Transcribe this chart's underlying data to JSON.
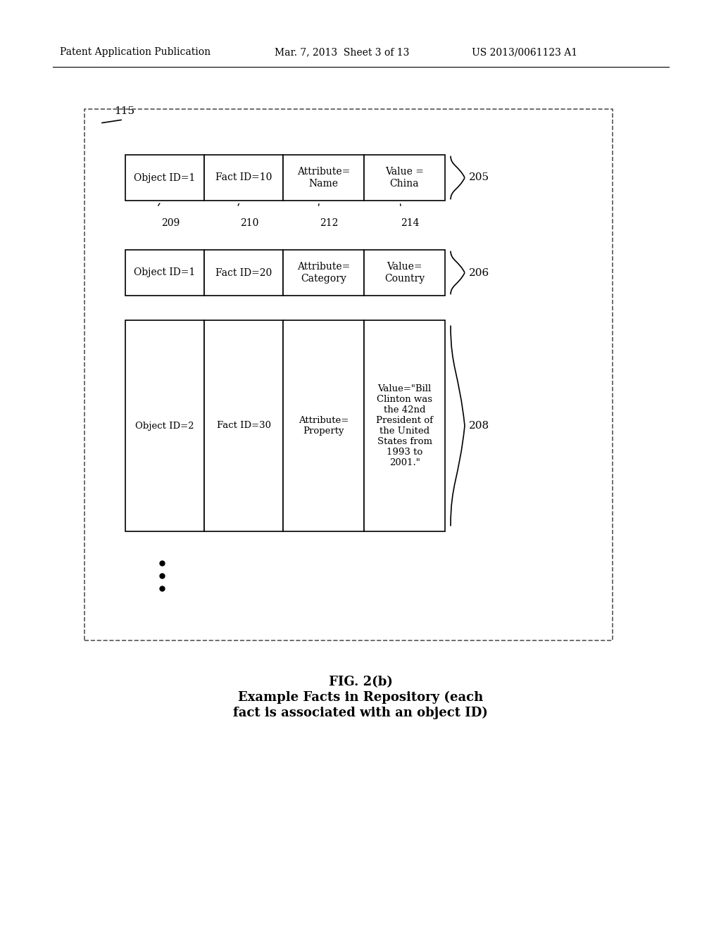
{
  "bg_color": "#ffffff",
  "header_left": "Patent Application Publication",
  "header_mid": "Mar. 7, 2013  Sheet 3 of 13",
  "header_right": "US 2013/0061123 A1",
  "caption_line1": "FIG. 2(b)",
  "caption_line2": "Example Facts in Repository (each",
  "caption_line3": "fact is associated with an object ID)",
  "outer_box_label": "115",
  "row1_cells": [
    "Object ID=1",
    "Fact ID=10",
    "Attribute=\nName",
    "Value =\nChina"
  ],
  "row1_label": "205",
  "row2_cells": [
    "Object ID=1",
    "Fact ID=20",
    "Attribute=\nCategory",
    "Value=\nCountry"
  ],
  "row2_label": "206",
  "row3_cells": [
    "Object ID=2",
    "Fact ID=30",
    "Attribute=\nProperty",
    "Value=\"Bill\nClinton was\nthe 42nd\nPresident of\nthe United\nStates from\n1993 to\n2001.\""
  ],
  "row3_label": "208",
  "col_labels": [
    "209",
    "210",
    "212",
    "214"
  ]
}
